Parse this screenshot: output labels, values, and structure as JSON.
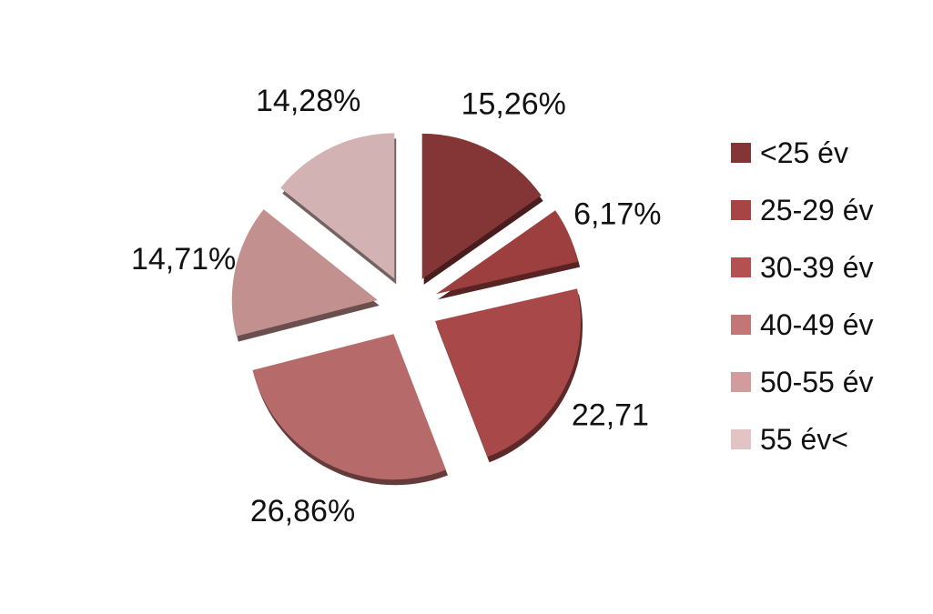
{
  "chart_data": {
    "type": "pie",
    "categories": [
      "<25 év",
      "25-29 év",
      "30-39 év",
      "40-49 év",
      "50-55 év",
      "55 év<"
    ],
    "values": [
      15.26,
      6.17,
      22.71,
      26.86,
      14.71,
      14.28
    ],
    "data_labels": [
      "15,26%",
      "6,17%",
      "22,71",
      "26,86%",
      "14,71%",
      "14,28%"
    ],
    "colors": [
      "#843535",
      "#9e3f3f",
      "#a84848",
      "#b66a6a",
      "#c39090",
      "#d3b2b3"
    ],
    "legend_colors": [
      "#843535",
      "#a84444",
      "#b55050",
      "#c47575",
      "#d39c9c",
      "#e2c4c4"
    ],
    "legend_position": "right",
    "exploded": true
  }
}
